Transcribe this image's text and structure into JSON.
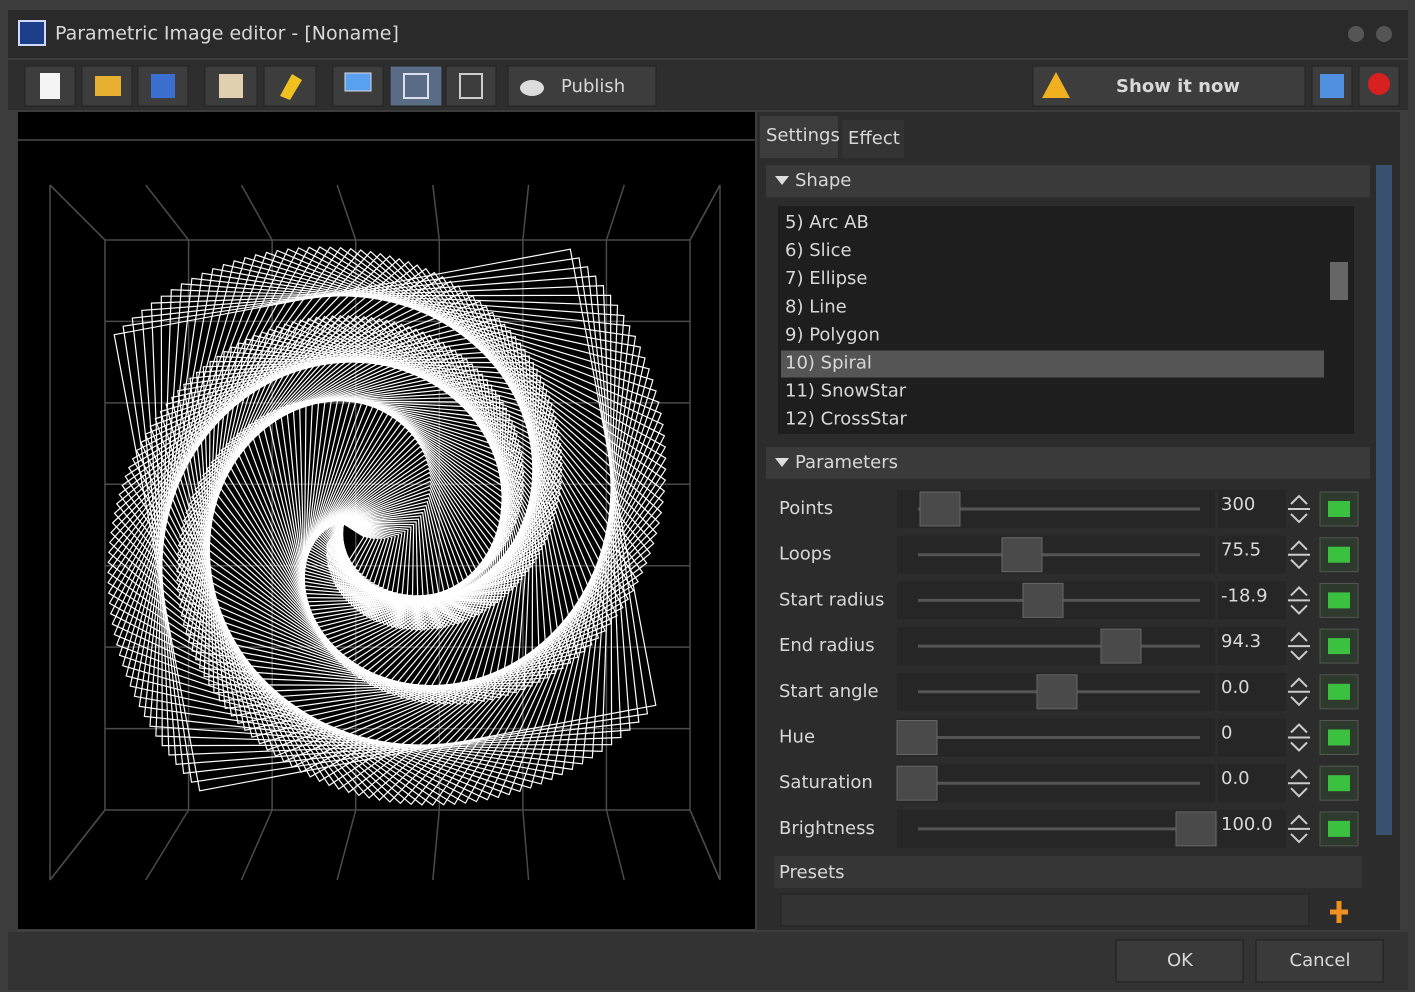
{
  "window": {
    "title": "Parametric Image editor - [Noname]"
  },
  "toolbar": {
    "publish": "Publish",
    "show_now": "Show it now"
  },
  "tabs": [
    "Settings",
    "Effect"
  ],
  "shape": {
    "header": "Shape",
    "items": [
      "5) Arc AB",
      "6) Slice",
      "7) Ellipse",
      "8) Line",
      "9) Polygon",
      "10) Spiral",
      "11) SnowStar",
      "12) CrossStar"
    ],
    "selected": 5
  },
  "parameters": {
    "header": "Parameters",
    "rows": [
      {
        "name": "Points",
        "value": "300"
      },
      {
        "name": "Loops",
        "value": "75.5"
      },
      {
        "name": "Start radius",
        "value": "-18.9"
      },
      {
        "name": "End radius",
        "value": "94.3"
      },
      {
        "name": "Start angle",
        "value": "0.0"
      },
      {
        "name": "Hue",
        "value": "0"
      },
      {
        "name": "Saturation",
        "value": "0.0"
      },
      {
        "name": "Brightness",
        "value": "100.0"
      }
    ]
  },
  "presets": {
    "label": "Presets"
  },
  "buttons": {
    "ok": "OK",
    "cancel": "Cancel"
  }
}
